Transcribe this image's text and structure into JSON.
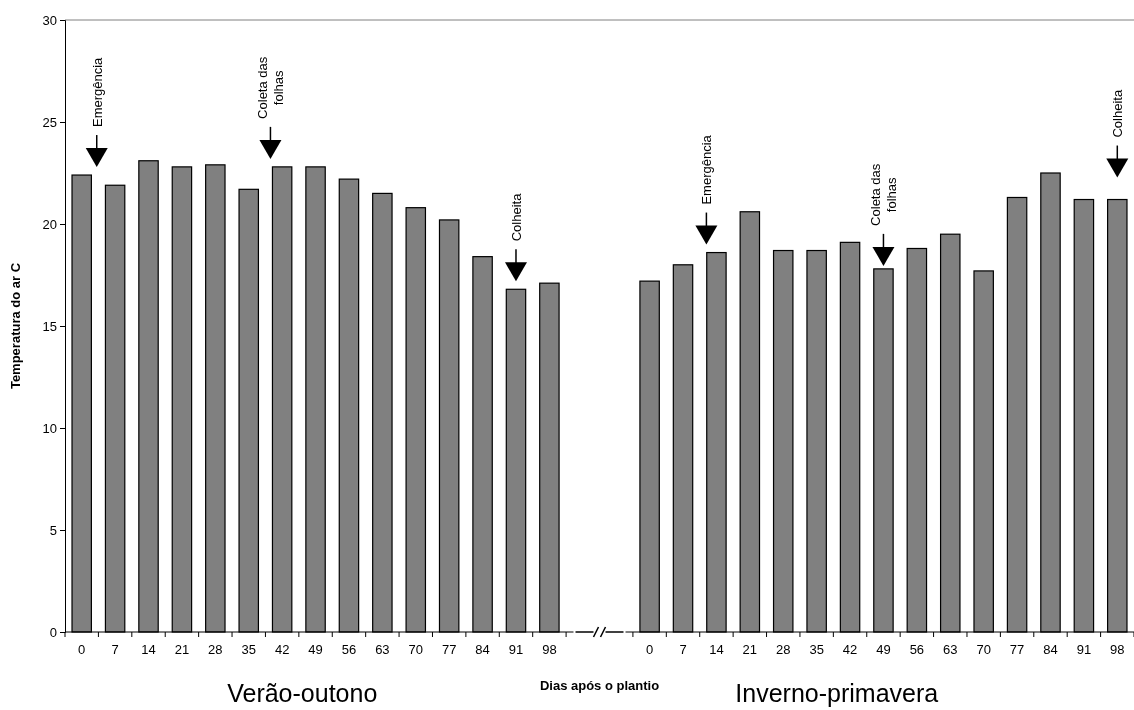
{
  "chart_data": {
    "type": "bar",
    "categories": [
      "0",
      "7",
      "14",
      "21",
      "28",
      "35",
      "42",
      "49",
      "56",
      "63",
      "70",
      "77",
      "84",
      "91",
      "98",
      null,
      null,
      "0",
      "7",
      "14",
      "21",
      "28",
      "35",
      "42",
      "49",
      "56",
      "63",
      "70",
      "77",
      "84",
      "91",
      "98"
    ],
    "values": [
      22.4,
      21.9,
      23.1,
      22.8,
      22.9,
      21.7,
      22.8,
      22.8,
      22.2,
      21.5,
      20.8,
      20.2,
      18.4,
      16.8,
      17.1,
      null,
      null,
      17.2,
      18.0,
      18.6,
      20.6,
      18.7,
      18.7,
      19.1,
      17.8,
      18.8,
      19.5,
      17.7,
      21.3,
      22.5,
      21.2,
      21.2
    ],
    "color": "#808080",
    "xlabel": "Dias após o plantio",
    "ylabel": "Temperatura do ar C",
    "ylim": [
      0,
      30
    ],
    "yticks": [
      0,
      5,
      10,
      15,
      20,
      25,
      30
    ],
    "grid": false,
    "annotations": [
      "Emergência",
      "Coleta das folhas",
      "Colheita",
      "Emergência",
      "Coleta das folhas",
      "Colheita",
      "Verão-outono",
      "Inverno-primavera"
    ]
  }
}
